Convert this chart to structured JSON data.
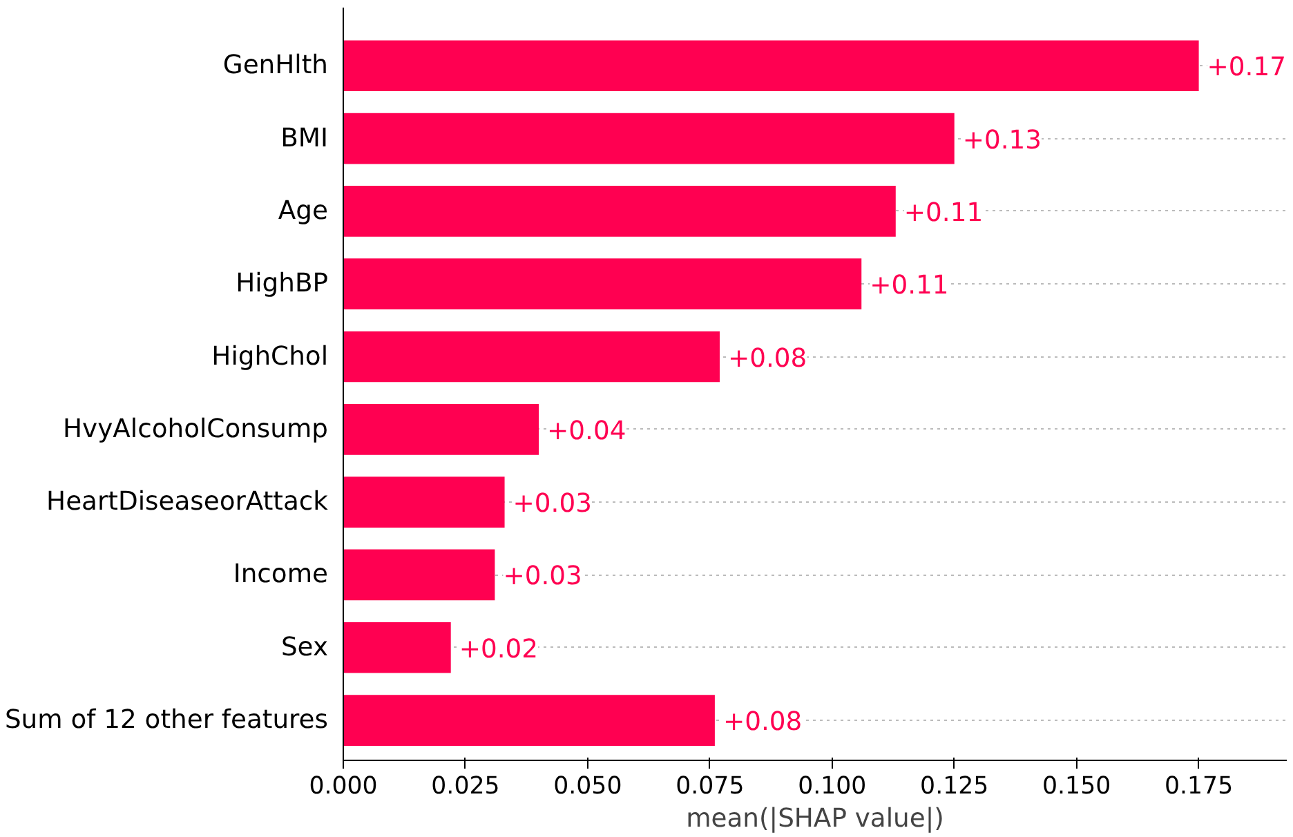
{
  "chart_data": {
    "type": "bar",
    "orientation": "horizontal",
    "xlabel": "mean(|SHAP value|)",
    "categories": [
      "GenHlth",
      "BMI",
      "Age",
      "HighBP",
      "HighChol",
      "HvyAlcoholConsump",
      "HeartDiseaseorAttack",
      "Income",
      "Sex",
      "Sum of 12 other features"
    ],
    "values": [
      0.175,
      0.125,
      0.113,
      0.106,
      0.077,
      0.04,
      0.033,
      0.031,
      0.022,
      0.076
    ],
    "value_labels": [
      "+0.17",
      "+0.13",
      "+0.11",
      "+0.11",
      "+0.08",
      "+0.04",
      "+0.03",
      "+0.03",
      "+0.02",
      "+0.08"
    ],
    "color": "#ff0051",
    "xlim": [
      0,
      0.193
    ],
    "xticks": [
      {
        "value": 0,
        "label": "0.000"
      },
      0.025,
      {
        "value": 0.05,
        "label": "0.050"
      },
      0.075,
      {
        "value": 0.1,
        "label": "0.100"
      },
      0.125,
      {
        "value": 0.15,
        "label": "0.150"
      },
      0.175
    ],
    "grid": "y"
  }
}
